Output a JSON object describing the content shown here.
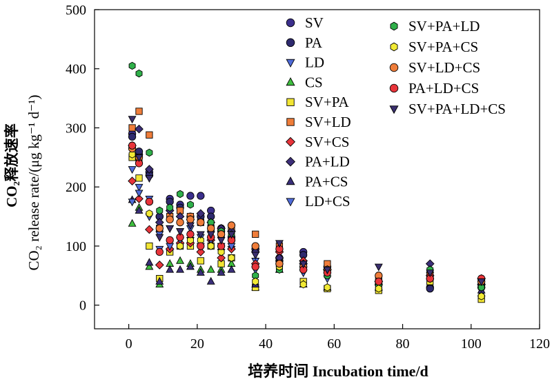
{
  "chart_data": {
    "type": "scatter",
    "title": "",
    "xlabel": "培养时间 Incubation time/d",
    "ylabel_cn": "CO₂释放速率",
    "ylabel_en": "CO₂ release rate/(μg kg⁻¹ d⁻¹)",
    "xlim": [
      -10,
      120
    ],
    "ylim": [
      -40,
      500
    ],
    "x_ticks": [
      0,
      20,
      40,
      60,
      80,
      100,
      120
    ],
    "y_ticks": [
      0,
      100,
      200,
      300,
      400,
      500
    ],
    "x_tick_labels": [
      "0",
      "20",
      "40",
      "60",
      "80",
      "100",
      "120"
    ],
    "y_tick_labels": [
      "0",
      "100",
      "200",
      "300",
      "400",
      "500"
    ],
    "grid": false,
    "legend_placement": "top-right, two columns",
    "series": [
      {
        "name": "SV",
        "marker": "circle",
        "color": "#3b2f8c",
        "points": [
          [
            1,
            290
          ],
          [
            3,
            255
          ],
          [
            6,
            225
          ],
          [
            9,
            150
          ],
          [
            12,
            180
          ],
          [
            15,
            170
          ],
          [
            18,
            185
          ],
          [
            21,
            185
          ],
          [
            24,
            160
          ],
          [
            27,
            130
          ],
          [
            30,
            115
          ],
          [
            37,
            95
          ],
          [
            44,
            80
          ],
          [
            51,
            90
          ],
          [
            58,
            65
          ],
          [
            73,
            40
          ],
          [
            88,
            30
          ],
          [
            103,
            35
          ]
        ]
      },
      {
        "name": "PA",
        "marker": "circle",
        "color": "#2e2a6e",
        "points": [
          [
            1,
            285
          ],
          [
            3,
            260
          ],
          [
            6,
            220
          ],
          [
            9,
            150
          ],
          [
            12,
            175
          ],
          [
            15,
            165
          ],
          [
            18,
            150
          ],
          [
            21,
            150
          ],
          [
            24,
            150
          ],
          [
            27,
            125
          ],
          [
            30,
            110
          ],
          [
            37,
            95
          ],
          [
            44,
            75
          ],
          [
            51,
            85
          ],
          [
            58,
            60
          ],
          [
            73,
            35
          ],
          [
            88,
            28
          ],
          [
            103,
            30
          ]
        ]
      },
      {
        "name": "LD",
        "marker": "triangle-down",
        "color": "#4f6bd8",
        "points": [
          [
            1,
            230
          ],
          [
            3,
            200
          ],
          [
            6,
            150
          ],
          [
            9,
            120
          ],
          [
            12,
            130
          ],
          [
            15,
            125
          ],
          [
            18,
            130
          ],
          [
            21,
            115
          ],
          [
            24,
            120
          ],
          [
            27,
            100
          ],
          [
            30,
            95
          ],
          [
            37,
            75
          ],
          [
            44,
            65
          ],
          [
            51,
            60
          ],
          [
            58,
            50
          ],
          [
            73,
            30
          ],
          [
            88,
            40
          ],
          [
            103,
            25
          ]
        ]
      },
      {
        "name": "CS",
        "marker": "triangle-up",
        "color": "#3fbf3f",
        "points": [
          [
            1,
            138
          ],
          [
            3,
            165
          ],
          [
            6,
            65
          ],
          [
            9,
            35
          ],
          [
            12,
            70
          ],
          [
            15,
            75
          ],
          [
            18,
            70
          ],
          [
            21,
            60
          ],
          [
            24,
            60
          ],
          [
            27,
            60
          ],
          [
            30,
            70
          ],
          [
            37,
            30
          ],
          [
            44,
            60
          ],
          [
            51,
            35
          ],
          [
            58,
            30
          ],
          [
            73,
            30
          ],
          [
            88,
            55
          ],
          [
            103,
            20
          ]
        ]
      },
      {
        "name": "SV+PA",
        "marker": "square",
        "color": "#f2e534",
        "points": [
          [
            1,
            250
          ],
          [
            3,
            215
          ],
          [
            6,
            100
          ],
          [
            9,
            45
          ],
          [
            12,
            90
          ],
          [
            15,
            100
          ],
          [
            18,
            100
          ],
          [
            21,
            75
          ],
          [
            24,
            100
          ],
          [
            27,
            70
          ],
          [
            30,
            80
          ],
          [
            37,
            30
          ],
          [
            44,
            70
          ],
          [
            51,
            40
          ],
          [
            58,
            28
          ],
          [
            73,
            25
          ],
          [
            88,
            40
          ],
          [
            103,
            10
          ]
        ]
      },
      {
        "name": "SV+LD",
        "marker": "square",
        "color": "#ef7d3a",
        "points": [
          [
            1,
            300
          ],
          [
            3,
            328
          ],
          [
            6,
            288
          ],
          [
            9,
            130
          ],
          [
            12,
            150
          ],
          [
            15,
            160
          ],
          [
            18,
            150
          ],
          [
            21,
            140
          ],
          [
            24,
            130
          ],
          [
            27,
            120
          ],
          [
            30,
            130
          ],
          [
            37,
            120
          ],
          [
            44,
            100
          ],
          [
            51,
            70
          ],
          [
            58,
            70
          ],
          [
            73,
            45
          ],
          [
            88,
            50
          ],
          [
            103,
            40
          ]
        ]
      },
      {
        "name": "SV+CS",
        "marker": "diamond",
        "color": "#e8343a",
        "points": [
          [
            1,
            210
          ],
          [
            3,
            180
          ],
          [
            6,
            128
          ],
          [
            9,
            68
          ],
          [
            12,
            95
          ],
          [
            15,
            105
          ],
          [
            18,
            105
          ],
          [
            21,
            90
          ],
          [
            24,
            110
          ],
          [
            27,
            80
          ],
          [
            30,
            95
          ],
          [
            37,
            70
          ],
          [
            44,
            90
          ],
          [
            51,
            75
          ],
          [
            58,
            60
          ],
          [
            73,
            40
          ],
          [
            88,
            50
          ],
          [
            103,
            45
          ]
        ]
      },
      {
        "name": "PA+LD",
        "marker": "diamond",
        "color": "#3d2f7a",
        "points": [
          [
            1,
            270
          ],
          [
            3,
            298
          ],
          [
            6,
            230
          ],
          [
            9,
            140
          ],
          [
            12,
            160
          ],
          [
            15,
            150
          ],
          [
            18,
            145
          ],
          [
            21,
            155
          ],
          [
            24,
            140
          ],
          [
            27,
            130
          ],
          [
            30,
            125
          ],
          [
            37,
            90
          ],
          [
            44,
            80
          ],
          [
            51,
            70
          ],
          [
            58,
            60
          ],
          [
            73,
            40
          ],
          [
            88,
            70
          ],
          [
            103,
            35
          ]
        ]
      },
      {
        "name": "PA+CS",
        "marker": "triangle-up",
        "color": "#3a2f7a",
        "points": [
          [
            1,
            178
          ],
          [
            3,
            160
          ],
          [
            6,
            72
          ],
          [
            9,
            40
          ],
          [
            12,
            60
          ],
          [
            15,
            60
          ],
          [
            18,
            65
          ],
          [
            21,
            55
          ],
          [
            24,
            40
          ],
          [
            27,
            55
          ],
          [
            30,
            60
          ],
          [
            37,
            35
          ],
          [
            44,
            60
          ],
          [
            51,
            35
          ],
          [
            58,
            30
          ],
          [
            73,
            30
          ],
          [
            88,
            60
          ],
          [
            103,
            25
          ]
        ]
      },
      {
        "name": "LD+CS",
        "marker": "triangle-down",
        "color": "#4f6bd8",
        "points": [
          [
            1,
            175
          ],
          [
            3,
            190
          ],
          [
            6,
            180
          ],
          [
            9,
            95
          ],
          [
            12,
            100
          ],
          [
            15,
            110
          ],
          [
            18,
            110
          ],
          [
            21,
            100
          ],
          [
            24,
            110
          ],
          [
            27,
            90
          ],
          [
            30,
            100
          ],
          [
            37,
            60
          ],
          [
            44,
            70
          ],
          [
            51,
            55
          ],
          [
            58,
            45
          ],
          [
            73,
            30
          ],
          [
            88,
            45
          ],
          [
            103,
            30
          ]
        ]
      },
      {
        "name": "SV+PA+LD",
        "marker": "hexagon",
        "color": "#2fb04a",
        "points": [
          [
            1,
            405
          ],
          [
            3,
            392
          ],
          [
            6,
            258
          ],
          [
            9,
            160
          ],
          [
            12,
            165
          ],
          [
            15,
            188
          ],
          [
            18,
            170
          ],
          [
            21,
            140
          ],
          [
            24,
            140
          ],
          [
            27,
            125
          ],
          [
            30,
            120
          ],
          [
            37,
            50
          ],
          [
            44,
            60
          ],
          [
            51,
            60
          ],
          [
            58,
            50
          ],
          [
            73,
            35
          ],
          [
            88,
            60
          ],
          [
            103,
            30
          ]
        ]
      },
      {
        "name": "SV+PA+CS",
        "marker": "hexagon",
        "color": "#f2ea34",
        "points": [
          [
            1,
            255
          ],
          [
            3,
            245
          ],
          [
            6,
            155
          ],
          [
            9,
            90
          ],
          [
            12,
            110
          ],
          [
            15,
            100
          ],
          [
            18,
            110
          ],
          [
            21,
            110
          ],
          [
            24,
            100
          ],
          [
            27,
            90
          ],
          [
            30,
            80
          ],
          [
            37,
            40
          ],
          [
            44,
            65
          ],
          [
            51,
            35
          ],
          [
            58,
            30
          ],
          [
            73,
            28
          ],
          [
            88,
            45
          ],
          [
            103,
            15
          ]
        ]
      },
      {
        "name": "SV+LD+CS",
        "marker": "circle",
        "color": "#ef7d3a",
        "points": [
          [
            1,
            265
          ],
          [
            3,
            250
          ],
          [
            6,
            175
          ],
          [
            9,
            130
          ],
          [
            12,
            145
          ],
          [
            15,
            140
          ],
          [
            18,
            145
          ],
          [
            21,
            140
          ],
          [
            24,
            130
          ],
          [
            27,
            120
          ],
          [
            30,
            135
          ],
          [
            37,
            100
          ],
          [
            44,
            70
          ],
          [
            51,
            65
          ],
          [
            58,
            60
          ],
          [
            73,
            50
          ],
          [
            88,
            45
          ],
          [
            103,
            40
          ]
        ]
      },
      {
        "name": "PA+LD+CS",
        "marker": "circle",
        "color": "#e8343a",
        "points": [
          [
            1,
            270
          ],
          [
            3,
            240
          ],
          [
            6,
            175
          ],
          [
            9,
            90
          ],
          [
            12,
            110
          ],
          [
            15,
            115
          ],
          [
            18,
            120
          ],
          [
            21,
            100
          ],
          [
            24,
            115
          ],
          [
            27,
            100
          ],
          [
            30,
            110
          ],
          [
            37,
            65
          ],
          [
            44,
            95
          ],
          [
            51,
            60
          ],
          [
            58,
            55
          ],
          [
            73,
            40
          ],
          [
            88,
            45
          ],
          [
            103,
            45
          ]
        ]
      },
      {
        "name": "SV+PA+LD+CS",
        "marker": "triangle-down",
        "color": "#3a2f6e",
        "points": [
          [
            1,
            315
          ],
          [
            3,
            250
          ],
          [
            6,
            215
          ],
          [
            9,
            115
          ],
          [
            12,
            130
          ],
          [
            15,
            125
          ],
          [
            18,
            135
          ],
          [
            21,
            120
          ],
          [
            24,
            120
          ],
          [
            27,
            110
          ],
          [
            30,
            120
          ],
          [
            37,
            85
          ],
          [
            44,
            105
          ],
          [
            51,
            70
          ],
          [
            58,
            60
          ],
          [
            73,
            65
          ],
          [
            88,
            55
          ],
          [
            103,
            40
          ]
        ]
      }
    ]
  }
}
